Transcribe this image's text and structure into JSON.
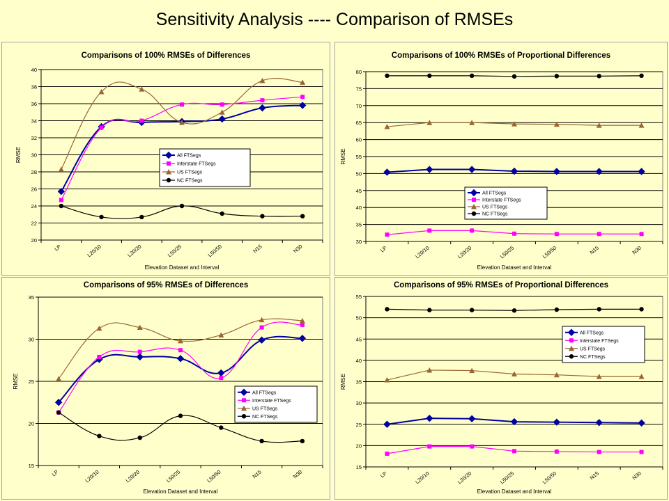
{
  "slide": {
    "title": "Sensitivity Analysis ---- Comparison of RMSEs"
  },
  "colors": {
    "all": "#0000a0",
    "interstate": "#ff00ff",
    "us": "#996633",
    "nc": "#000000",
    "plot_bg": "#ffffcc",
    "grid": "#000000"
  },
  "chart_data": [
    {
      "type": "line",
      "title": "Comparisons of 100% RMSEs of Differences",
      "xlabel": "Elevation Dataset and Interval",
      "ylabel": "RMSE",
      "categories": [
        "LP",
        "L20/10",
        "L20/20",
        "L50/25",
        "L50/50",
        "N15",
        "N30"
      ],
      "ylim": [
        20,
        40
      ],
      "yticks": [
        20,
        22,
        24,
        26,
        28,
        30,
        32,
        34,
        36,
        38,
        40
      ],
      "ytick_labels": [
        "20",
        "22",
        "24",
        "26",
        "28",
        "30",
        "32",
        "34",
        "36",
        "38",
        "40"
      ],
      "grid": true,
      "legend": "center-right",
      "series": [
        {
          "name": "All FTSegs",
          "values": [
            25.7,
            33.3,
            33.8,
            33.9,
            34.2,
            35.5,
            35.8
          ]
        },
        {
          "name": "Interstate FTSegs",
          "values": [
            24.7,
            33.2,
            34.0,
            35.9,
            35.9,
            36.4,
            36.8
          ]
        },
        {
          "name": "US FTSegs",
          "values": [
            28.3,
            37.4,
            37.7,
            33.8,
            35.0,
            38.7,
            38.5
          ]
        },
        {
          "name": "NC FTSegs",
          "values": [
            24.0,
            22.7,
            22.7,
            24.0,
            23.1,
            22.8,
            22.8
          ]
        }
      ]
    },
    {
      "type": "line",
      "title": "Comparisons of 100% RMSEs of Proportional Differences",
      "xlabel": "Elevation Dataset and Interval",
      "ylabel": "RMSE",
      "categories": [
        "LP",
        "L20/10",
        "L20/20",
        "L50/25",
        "L50/50",
        "N15",
        "N30"
      ],
      "ylim": [
        30,
        80
      ],
      "yticks": [
        30,
        35,
        40,
        45,
        50,
        55,
        60,
        65,
        70,
        75,
        80
      ],
      "ytick_labels": [
        "30",
        "35",
        "40",
        "45",
        "50",
        "55",
        "60",
        "65",
        "70",
        "75",
        "80"
      ],
      "grid": true,
      "legend": "bottom-center",
      "series": [
        {
          "name": "All FTSegs",
          "values": [
            50.4,
            51.2,
            51.2,
            50.7,
            50.6,
            50.6,
            50.6
          ]
        },
        {
          "name": "Interstate FTSegs",
          "values": [
            32.0,
            33.2,
            33.2,
            32.3,
            32.2,
            32.2,
            32.2
          ]
        },
        {
          "name": "US FTSegs",
          "values": [
            63.8,
            65.0,
            65.0,
            64.6,
            64.5,
            64.2,
            64.2
          ]
        },
        {
          "name": "NC FTSegs",
          "values": [
            78.8,
            78.8,
            78.8,
            78.6,
            78.7,
            78.7,
            78.8
          ]
        }
      ]
    },
    {
      "type": "line",
      "title": "Comparisons of 95% RMSEs of Differences",
      "xlabel": "Elevation Dataset and Interval",
      "ylabel": "RMSE",
      "categories": [
        "LP",
        "L20/10",
        "L20/20",
        "L50/25",
        "L50/50",
        "N15",
        "N30"
      ],
      "ylim": [
        15,
        35
      ],
      "yticks": [
        15,
        20,
        25,
        30,
        35
      ],
      "ytick_labels": [
        "15",
        "20",
        "25",
        "30",
        "35"
      ],
      "grid": true,
      "legend": "bottom-right",
      "series": [
        {
          "name": "All FTSegs",
          "values": [
            22.5,
            27.6,
            27.9,
            27.7,
            26.0,
            29.9,
            30.1
          ]
        },
        {
          "name": "Interstate FTSegs",
          "values": [
            21.3,
            27.9,
            28.5,
            28.7,
            25.4,
            31.4,
            31.7
          ]
        },
        {
          "name": "US FTSegs",
          "values": [
            25.3,
            31.3,
            31.4,
            29.8,
            30.5,
            32.3,
            32.2
          ]
        },
        {
          "name": "NC FTSegs",
          "values": [
            21.3,
            18.5,
            18.3,
            20.9,
            19.5,
            17.9,
            17.9
          ]
        }
      ]
    },
    {
      "type": "line",
      "title": "Comparisons of 95% RMSEs of Proportional Differences",
      "xlabel": "Elevation Dataset and Interval",
      "ylabel": "RMSE",
      "categories": [
        "LP",
        "L20/10",
        "L20/20",
        "L50/25",
        "L50/50",
        "N15",
        "N30"
      ],
      "ylim": [
        15,
        55
      ],
      "yticks": [
        15,
        20,
        25,
        30,
        35,
        40,
        45,
        50,
        55
      ],
      "ytick_labels": [
        "15",
        "20",
        "25",
        "30",
        "35",
        "40",
        "45",
        "50",
        "55"
      ],
      "grid": true,
      "legend": "top-right",
      "series": [
        {
          "name": "All FTSegs",
          "values": [
            25.0,
            26.4,
            26.3,
            25.6,
            25.5,
            25.4,
            25.3
          ]
        },
        {
          "name": "Interstate FTSegs",
          "values": [
            18.1,
            19.8,
            19.8,
            18.7,
            18.6,
            18.5,
            18.5
          ]
        },
        {
          "name": "US FTSegs",
          "values": [
            35.4,
            37.7,
            37.6,
            36.8,
            36.6,
            36.2,
            36.2
          ]
        },
        {
          "name": "NC FTSegs",
          "values": [
            52.0,
            51.8,
            51.8,
            51.7,
            51.9,
            52.0,
            52.0
          ]
        }
      ]
    }
  ]
}
